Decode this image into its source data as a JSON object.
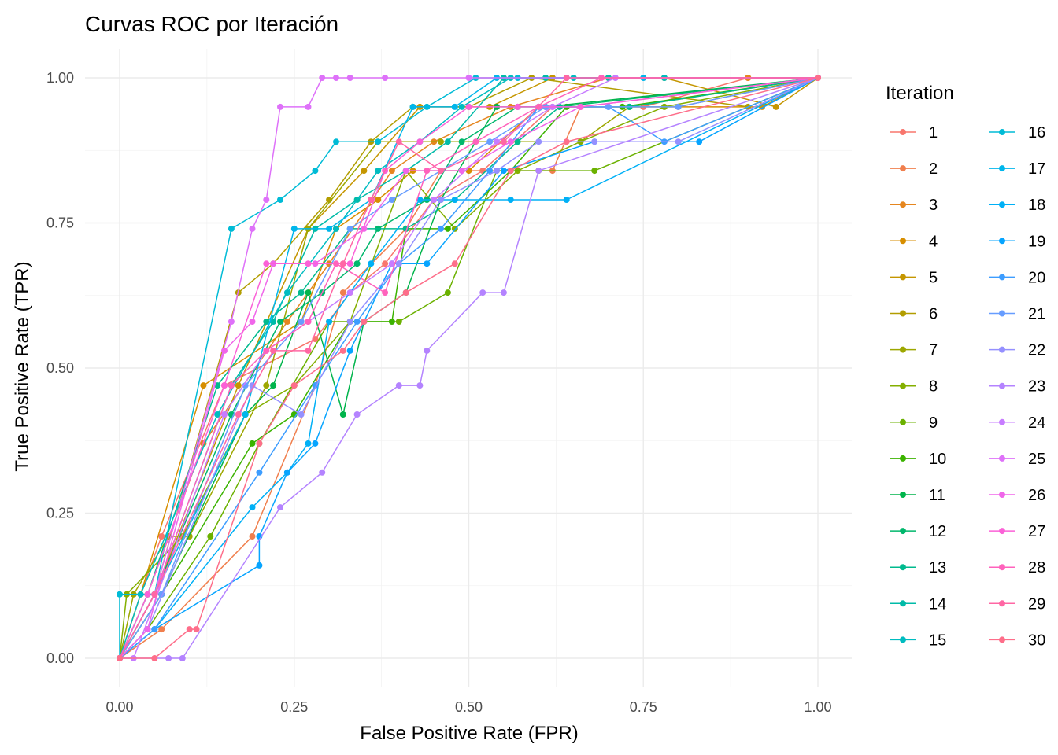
{
  "chart_data": {
    "type": "line",
    "title": "Curvas ROC por Iteración",
    "xlabel": "False Positive Rate (FPR)",
    "ylabel": "True Positive Rate (TPR)",
    "xlim": [
      0,
      1
    ],
    "ylim": [
      0,
      1
    ],
    "x_ticks": [
      "0.00",
      "0.25",
      "0.50",
      "0.75",
      "1.00"
    ],
    "y_ticks": [
      "0.00",
      "0.25",
      "0.50",
      "0.75",
      "1.00"
    ],
    "grid": true,
    "legend": {
      "title": "Iteration",
      "position": "right",
      "columns": 2
    },
    "series": [
      {
        "name": "1",
        "color": "#F8766D",
        "x": [
          0,
          0.03,
          0.06,
          0.15,
          0.28,
          0.33,
          0.38,
          0.45,
          0.52,
          0.62,
          0.75,
          0.9,
          1
        ],
        "y": [
          0,
          0.11,
          0.21,
          0.47,
          0.55,
          0.63,
          0.68,
          0.79,
          0.84,
          0.95,
          0.95,
          1,
          1
        ]
      },
      {
        "name": "2",
        "color": "#F07F4D",
        "x": [
          0,
          0.06,
          0.19,
          0.28,
          0.32,
          0.41,
          0.46,
          0.56,
          0.62,
          0.66,
          0.8,
          1
        ],
        "y": [
          0,
          0.05,
          0.21,
          0.47,
          0.63,
          0.74,
          0.84,
          0.84,
          0.84,
          0.95,
          0.95,
          1
        ]
      },
      {
        "name": "3",
        "color": "#E5861F",
        "x": [
          0,
          0.04,
          0.12,
          0.24,
          0.3,
          0.39,
          0.45,
          0.56,
          0.7,
          0.9,
          1
        ],
        "y": [
          0,
          0.11,
          0.37,
          0.58,
          0.68,
          0.84,
          0.89,
          0.95,
          1,
          1,
          1
        ]
      },
      {
        "name": "4",
        "color": "#D78E00",
        "x": [
          0,
          0.03,
          0.12,
          0.26,
          0.31,
          0.37,
          0.42,
          0.5,
          0.6,
          0.92,
          1
        ],
        "y": [
          0,
          0.11,
          0.47,
          0.58,
          0.74,
          0.79,
          0.84,
          0.84,
          0.95,
          0.95,
          1
        ]
      },
      {
        "name": "5",
        "color": "#C59600",
        "x": [
          0,
          0.05,
          0.17,
          0.27,
          0.35,
          0.43,
          0.53,
          0.62,
          0.78,
          0.94,
          1
        ],
        "y": [
          0,
          0.11,
          0.47,
          0.74,
          0.84,
          0.95,
          0.95,
          1,
          1,
          0.95,
          1
        ]
      },
      {
        "name": "6",
        "color": "#B29D00",
        "x": [
          0,
          0.05,
          0.17,
          0.22,
          0.3,
          0.36,
          0.42,
          0.5,
          0.59,
          0.9,
          1
        ],
        "y": [
          0,
          0.11,
          0.63,
          0.68,
          0.79,
          0.89,
          0.95,
          0.95,
          1,
          0.95,
          1
        ]
      },
      {
        "name": "7",
        "color": "#9DA700",
        "x": [
          0,
          0.02,
          0.07,
          0.1,
          0.21,
          0.27,
          0.37,
          0.46,
          0.55,
          0.66,
          0.73,
          1
        ],
        "y": [
          0,
          0.11,
          0.21,
          0.21,
          0.47,
          0.74,
          0.89,
          0.89,
          0.89,
          0.89,
          0.95,
          1
        ]
      },
      {
        "name": "8",
        "color": "#84AF00",
        "x": [
          0,
          0.01,
          0.09,
          0.18,
          0.25,
          0.33,
          0.41,
          0.48,
          0.57,
          0.66,
          0.78,
          1
        ],
        "y": [
          0,
          0.11,
          0.21,
          0.42,
          0.47,
          0.58,
          0.84,
          0.74,
          0.84,
          0.89,
          0.95,
          1
        ]
      },
      {
        "name": "9",
        "color": "#6BB100",
        "x": [
          0,
          0.04,
          0.13,
          0.2,
          0.3,
          0.4,
          0.47,
          0.54,
          0.6,
          0.68,
          1
        ],
        "y": [
          0,
          0.05,
          0.21,
          0.37,
          0.58,
          0.58,
          0.63,
          0.84,
          0.84,
          0.84,
          1
        ]
      },
      {
        "name": "10",
        "color": "#3BB300",
        "x": [
          0,
          0.06,
          0.19,
          0.25,
          0.33,
          0.39,
          0.41,
          0.47,
          0.56,
          0.64,
          0.72,
          1
        ],
        "y": [
          0,
          0.11,
          0.37,
          0.42,
          0.58,
          0.58,
          0.74,
          0.74,
          0.84,
          0.95,
          0.95,
          1
        ]
      },
      {
        "name": "11",
        "color": "#00B44B",
        "x": [
          0,
          0.06,
          0.18,
          0.22,
          0.27,
          0.32,
          0.35,
          0.41,
          0.46,
          0.54,
          0.61,
          1
        ],
        "y": [
          0,
          0.11,
          0.42,
          0.47,
          0.63,
          0.42,
          0.58,
          0.63,
          0.79,
          0.95,
          0.95,
          1
        ]
      },
      {
        "name": "12",
        "color": "#00B76C",
        "x": [
          0,
          0.05,
          0.16,
          0.23,
          0.29,
          0.34,
          0.37,
          0.44,
          0.49,
          0.57,
          0.63,
          1
        ],
        "y": [
          0,
          0.11,
          0.42,
          0.58,
          0.63,
          0.68,
          0.74,
          0.79,
          0.89,
          0.95,
          0.95,
          1
        ]
      },
      {
        "name": "13",
        "color": "#00BA8E",
        "x": [
          0,
          0.04,
          0.14,
          0.21,
          0.26,
          0.33,
          0.41,
          0.48,
          0.57,
          0.63,
          0.73,
          1
        ],
        "y": [
          0,
          0.11,
          0.47,
          0.58,
          0.63,
          0.74,
          0.74,
          0.79,
          0.89,
          0.95,
          0.95,
          1
        ]
      },
      {
        "name": "14",
        "color": "#00BBA8",
        "x": [
          0,
          0.05,
          0.16,
          0.22,
          0.28,
          0.34,
          0.41,
          0.47,
          0.55,
          0.61,
          0.7,
          1
        ],
        "y": [
          0,
          0.11,
          0.47,
          0.58,
          0.74,
          0.79,
          0.84,
          0.89,
          1,
          1,
          1,
          1
        ]
      },
      {
        "name": "15",
        "color": "#00BCC0",
        "x": [
          0,
          0.03,
          0.14,
          0.24,
          0.31,
          0.37,
          0.43,
          0.49,
          0.56,
          0.65,
          0.78,
          1
        ],
        "y": [
          0,
          0.11,
          0.42,
          0.63,
          0.74,
          0.84,
          0.89,
          0.95,
          1,
          1,
          1,
          1
        ]
      },
      {
        "name": "16",
        "color": "#00BBD6",
        "x": [
          0,
          0,
          0.05,
          0.16,
          0.23,
          0.28,
          0.31,
          0.37,
          0.44,
          0.51,
          0.57,
          1
        ],
        "y": [
          0,
          0.11,
          0.11,
          0.74,
          0.79,
          0.84,
          0.89,
          0.89,
          0.95,
          1,
          1,
          1
        ]
      },
      {
        "name": "17",
        "color": "#00B6EB",
        "x": [
          0,
          0.05,
          0.18,
          0.25,
          0.3,
          0.36,
          0.42,
          0.48,
          0.54,
          0.64,
          0.75,
          1
        ],
        "y": [
          0,
          0.11,
          0.42,
          0.74,
          0.74,
          0.79,
          0.95,
          0.95,
          1,
          1,
          1,
          1
        ]
      },
      {
        "name": "18",
        "color": "#00B0F6",
        "x": [
          0,
          0.05,
          0.19,
          0.24,
          0.27,
          0.3,
          0.36,
          0.43,
          0.48,
          0.56,
          0.64,
          1
        ],
        "y": [
          0,
          0.05,
          0.26,
          0.32,
          0.37,
          0.58,
          0.68,
          0.79,
          0.79,
          0.79,
          0.79,
          1
        ]
      },
      {
        "name": "19",
        "color": "#06A4FF",
        "x": [
          0,
          0.05,
          0.2,
          0.2,
          0.24,
          0.28,
          0.33,
          0.39,
          0.44,
          0.55,
          0.68,
          0.83,
          1
        ],
        "y": [
          0,
          0.05,
          0.16,
          0.21,
          0.32,
          0.37,
          0.53,
          0.68,
          0.68,
          0.84,
          0.89,
          0.89,
          1
        ]
      },
      {
        "name": "20",
        "color": "#3D9DFF",
        "x": [
          0,
          0.05,
          0.2,
          0.28,
          0.34,
          0.4,
          0.46,
          0.53,
          0.6,
          0.7,
          0.78,
          1
        ],
        "y": [
          0,
          0.05,
          0.32,
          0.47,
          0.58,
          0.68,
          0.74,
          0.84,
          0.95,
          0.95,
          0.89,
          1
        ]
      },
      {
        "name": "21",
        "color": "#679DFF",
        "x": [
          0,
          0.06,
          0.18,
          0.26,
          0.33,
          0.39,
          0.46,
          0.53,
          0.61,
          0.7,
          0.8,
          1
        ],
        "y": [
          0,
          0.11,
          0.47,
          0.58,
          0.74,
          0.79,
          0.84,
          0.89,
          0.95,
          0.95,
          0.95,
          1
        ]
      },
      {
        "name": "22",
        "color": "#9590FF",
        "x": [
          0,
          0.04,
          0.19,
          0.26,
          0.33,
          0.4,
          0.46,
          0.54,
          0.6,
          0.68,
          0.8,
          1
        ],
        "y": [
          0,
          0.05,
          0.47,
          0.42,
          0.58,
          0.68,
          0.79,
          0.84,
          0.89,
          0.89,
          0.89,
          1
        ]
      },
      {
        "name": "23",
        "color": "#B483FF",
        "x": [
          0,
          0.07,
          0.09,
          0.23,
          0.29,
          0.34,
          0.4,
          0.43,
          0.44,
          0.52,
          0.55,
          0.6,
          1
        ],
        "y": [
          0,
          0,
          0,
          0.26,
          0.32,
          0.42,
          0.47,
          0.47,
          0.53,
          0.63,
          0.63,
          0.84,
          1
        ]
      },
      {
        "name": "24",
        "color": "#C77CFF",
        "x": [
          0,
          0.02,
          0.15,
          0.21,
          0.27,
          0.33,
          0.39,
          0.45,
          0.54,
          0.62,
          0.71,
          1
        ],
        "y": [
          0,
          0,
          0.42,
          0.53,
          0.58,
          0.63,
          0.68,
          0.79,
          0.89,
          0.95,
          1,
          1
        ]
      },
      {
        "name": "25",
        "color": "#DE71F9",
        "x": [
          0,
          0.05,
          0.16,
          0.19,
          0.21,
          0.23,
          0.27,
          0.29,
          0.31,
          0.33,
          0.38,
          0.5,
          1
        ],
        "y": [
          0,
          0.11,
          0.58,
          0.74,
          0.79,
          0.95,
          0.95,
          1,
          1,
          1,
          1,
          1,
          1
        ]
      },
      {
        "name": "26",
        "color": "#F066EA",
        "x": [
          0,
          0.04,
          0.15,
          0.19,
          0.22,
          0.28,
          0.35,
          0.41,
          0.49,
          0.56,
          0.66,
          1
        ],
        "y": [
          0,
          0.05,
          0.53,
          0.58,
          0.68,
          0.68,
          0.74,
          0.84,
          0.84,
          0.89,
          0.95,
          1
        ]
      },
      {
        "name": "27",
        "color": "#FB61D7",
        "x": [
          0,
          0.04,
          0.15,
          0.21,
          0.27,
          0.33,
          0.38,
          0.43,
          0.5,
          0.57,
          0.66,
          1
        ],
        "y": [
          0,
          0.11,
          0.47,
          0.68,
          0.68,
          0.68,
          0.84,
          0.89,
          0.95,
          0.95,
          0.95,
          1
        ]
      },
      {
        "name": "28",
        "color": "#FF62BC",
        "x": [
          0,
          0.05,
          0.16,
          0.21,
          0.27,
          0.31,
          0.38,
          0.44,
          0.51,
          0.6,
          0.69,
          1
        ],
        "y": [
          0,
          0.11,
          0.47,
          0.53,
          0.58,
          0.68,
          0.63,
          0.84,
          0.89,
          0.95,
          1,
          1
        ]
      },
      {
        "name": "29",
        "color": "#FF67A4",
        "x": [
          0,
          0.05,
          0.17,
          0.22,
          0.27,
          0.32,
          0.36,
          0.4,
          0.46,
          0.55,
          0.64,
          1
        ],
        "y": [
          0,
          0.11,
          0.42,
          0.53,
          0.53,
          0.68,
          0.79,
          0.89,
          0.84,
          0.89,
          1,
          1
        ]
      },
      {
        "name": "30",
        "color": "#FE6E8A",
        "x": [
          0,
          0.05,
          0.1,
          0.11,
          0.2,
          0.25,
          0.32,
          0.35,
          0.41,
          0.48,
          0.56,
          0.64,
          1
        ],
        "y": [
          0,
          0,
          0.05,
          0.05,
          0.37,
          0.47,
          0.53,
          0.58,
          0.63,
          0.68,
          0.84,
          0.89,
          1
        ]
      }
    ]
  }
}
